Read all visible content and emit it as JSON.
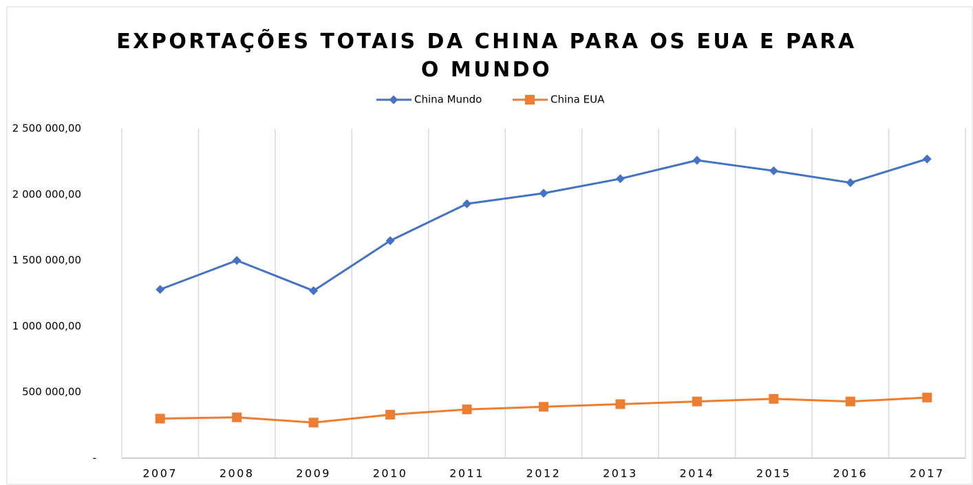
{
  "chart_data": {
    "type": "line",
    "title": "EXPORTAÇÕES TOTAIS DA CHINA PARA OS EUA E PARA O MUNDO",
    "categories": [
      "2007",
      "2008",
      "2009",
      "2010",
      "2011",
      "2012",
      "2013",
      "2014",
      "2015",
      "2016",
      "2017"
    ],
    "series": [
      {
        "name": "China Mundo",
        "color": "#4472c4",
        "marker": "diamond",
        "values": [
          1280000,
          1500000,
          1270000,
          1650000,
          1930000,
          2010000,
          2120000,
          2260000,
          2180000,
          2090000,
          2270000
        ]
      },
      {
        "name": "China EUA",
        "color": "#ed7d31",
        "marker": "square",
        "values": [
          300000,
          310000,
          270000,
          330000,
          370000,
          390000,
          410000,
          430000,
          450000,
          430000,
          460000
        ]
      }
    ],
    "ylim": [
      0,
      2500000
    ],
    "yticks": [
      {
        "value": 0,
        "label": "-"
      },
      {
        "value": 500000,
        "label": "500 000,00"
      },
      {
        "value": 1000000,
        "label": "1 000 000,00"
      },
      {
        "value": 1500000,
        "label": "1 500 000,00"
      },
      {
        "value": 2000000,
        "label": "2 000 000,00"
      },
      {
        "value": 2500000,
        "label": "2 500 000,00"
      }
    ],
    "legend": "top",
    "grid": "vertical"
  }
}
